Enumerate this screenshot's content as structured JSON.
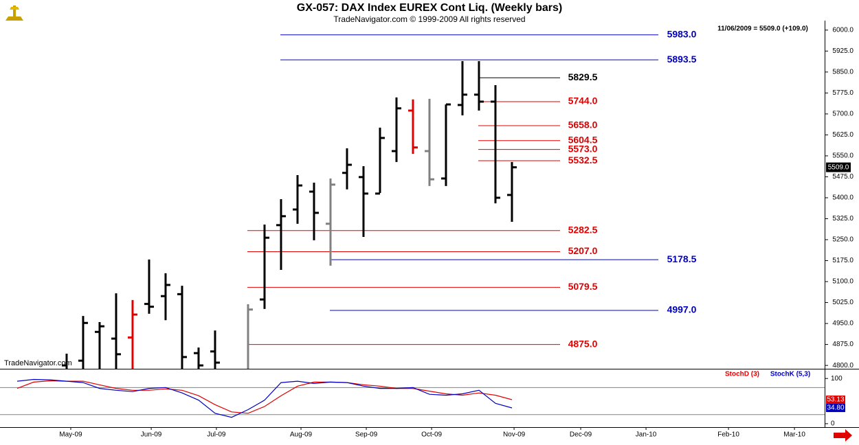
{
  "chart_data": [
    {
      "type": "ohlc",
      "title": "GX-057:  DAX Index EUREX Cont Liq.  (Weekly bars)",
      "subtitle": "TradeNavigator.com © 1999-2009 All rights reserved",
      "watermark": "TradeNavigator.com",
      "info": "11/06/2009 = 5509.0 (+109.0)",
      "last_price": {
        "value": 5509,
        "label": "5509.0"
      },
      "categories": [
        null,
        null,
        null,
        null,
        null,
        null,
        null,
        null,
        null,
        null,
        null,
        null,
        null,
        null,
        null,
        null,
        null,
        null,
        null,
        null,
        null,
        null,
        null,
        null,
        null,
        null,
        null,
        null,
        null,
        null,
        null
      ],
      "xlim": [
        -1.04,
        48.96
      ],
      "open": [
        null,
        null,
        null,
        4800,
        4817,
        4920,
        4896,
        4900,
        5020,
        5048,
        5055,
        4844,
        4850,
        4770,
        4700,
        5036,
        5302,
        5358,
        5422,
        5307,
        5489,
        5474,
        5415,
        5567,
        5712,
        5567,
        5469,
        5732,
        5769,
        5744,
        5410
      ],
      "high": [
        null,
        null,
        null,
        4842,
        4977,
        4955,
        5058,
        5034,
        5179,
        5130,
        5085,
        4864,
        4925,
        4780,
        5019,
        5304,
        5395,
        5481,
        5454,
        5469,
        5577,
        5513,
        5651,
        5759,
        5752,
        5754,
        5734,
        5889,
        5889,
        5803,
        5528
      ],
      "low": [
        null,
        null,
        null,
        4700,
        4750,
        4760,
        4780,
        4750,
        4985,
        4962,
        4780,
        4760,
        4700,
        4600,
        4690,
        5002,
        5142,
        5307,
        5248,
        5157,
        5430,
        5260,
        5417,
        5528,
        5557,
        5442,
        5442,
        5695,
        5712,
        5380,
        5314
      ],
      "close": [
        null,
        null,
        null,
        4780,
        4952,
        4940,
        4840,
        4982,
        5010,
        5088,
        4830,
        4800,
        4810,
        4700,
        5000,
        5257,
        5334,
        5444,
        5346,
        5447,
        5518,
        5415,
        5614,
        5720,
        5580,
        5466,
        5734,
        5769,
        5744,
        5400,
        5509
      ],
      "colors": [
        null,
        null,
        null,
        "#000000",
        "#000000",
        "#000000",
        "#000000",
        "#e00000",
        "#000000",
        "#000000",
        "#000000",
        "#000000",
        "#000000",
        "#000000",
        "#808080",
        "#000000",
        "#000000",
        "#000000",
        "#000000",
        "#808080",
        "#000000",
        "#000000",
        "#000000",
        "#000000",
        "#e00000",
        "#808080",
        "#000000",
        "#000000",
        "#000000",
        "#000000",
        "#000000"
      ],
      "ylim": [
        4788,
        6034
      ],
      "yticks": [
        {
          "value": 6000,
          "label": "6000.0"
        },
        {
          "value": 5925,
          "label": "5925.0"
        },
        {
          "value": 5850,
          "label": "5850.0"
        },
        {
          "value": 5775,
          "label": "5775.0"
        },
        {
          "value": 5700,
          "label": "5700.0"
        },
        {
          "value": 5625,
          "label": "5625.0"
        },
        {
          "value": 5550,
          "label": "5550.0"
        },
        {
          "value": 5475,
          "label": "5475.0"
        },
        {
          "value": 5400,
          "label": "5400.0"
        },
        {
          "value": 5325,
          "label": "5325.0"
        },
        {
          "value": 5250,
          "label": "5250.0"
        },
        {
          "value": 5175,
          "label": "5175.0"
        },
        {
          "value": 5100,
          "label": "5100.0"
        },
        {
          "value": 5025,
          "label": "5025.0"
        },
        {
          "value": 4950,
          "label": "4950.0"
        },
        {
          "value": 4875,
          "label": "4875.0"
        },
        {
          "value": 4800,
          "label": "4800.0"
        }
      ],
      "levels": [
        {
          "value": 5983,
          "label": "5983.0",
          "color": "#0000c0",
          "from": 16
        },
        {
          "value": 5893.5,
          "label": "5893.5",
          "color": "#0000c0",
          "from": 16
        },
        {
          "value": 5829.5,
          "label": "5829.5",
          "color": "#000000",
          "from": 28
        },
        {
          "value": 5744,
          "label": "5744.0",
          "color": "#e00000",
          "from": 28
        },
        {
          "value": 5658,
          "label": "5658.0",
          "color": "#e00000",
          "from": 28
        },
        {
          "value": 5604.5,
          "label": "5604.5",
          "color": "#e00000",
          "from": 28
        },
        {
          "value": 5573,
          "label": "5573.0",
          "color": "#e00000",
          "from": 28
        },
        {
          "value": 5532.5,
          "label": "5532.5",
          "color": "#e00000",
          "from": 28
        },
        {
          "value": 5282.5,
          "label": "5282.5",
          "color": "#e00000",
          "from": 14
        },
        {
          "value": 5207,
          "label": "5207.0",
          "color": "#e00000",
          "from": 14
        },
        {
          "value": 5178.5,
          "label": "5178.5",
          "color": "#0000c0",
          "from": 19
        },
        {
          "value": 5079.5,
          "label": "5079.5",
          "color": "#e00000",
          "from": 14
        },
        {
          "value": 4997,
          "label": "4997.0",
          "color": "#0000c0",
          "from": 19
        },
        {
          "value": 4875,
          "label": "4875.0",
          "color": "#e00000",
          "from": 14
        }
      ]
    },
    {
      "type": "line",
      "categories": [
        null,
        null,
        null,
        null,
        null,
        null,
        null,
        null,
        null,
        null,
        null,
        null,
        null,
        null,
        null,
        null,
        null,
        null,
        null,
        null,
        null,
        null,
        null,
        null,
        null,
        null,
        null,
        null,
        null,
        null,
        null
      ],
      "xlim": [
        -1.04,
        48.96
      ],
      "xticks": [
        {
          "value": 3.25,
          "label": "May-09"
        },
        {
          "value": 8.13,
          "label": "Jun-09"
        },
        {
          "value": 12.08,
          "label": "Jul-09"
        },
        {
          "value": 17.21,
          "label": "Aug-09"
        },
        {
          "value": 21.17,
          "label": "Sep-09"
        },
        {
          "value": 25.13,
          "label": "Oct-09"
        },
        {
          "value": 30.13,
          "label": "Nov-09"
        },
        {
          "value": 34.17,
          "label": "Dec-09"
        },
        {
          "value": 38.13,
          "label": "Jan-10"
        },
        {
          "value": 43.13,
          "label": "Feb-10"
        },
        {
          "value": 47.13,
          "label": "Mar-10"
        }
      ],
      "ylim": [
        -7.7,
        118.5
      ],
      "yticks": [
        0,
        100
      ],
      "levels": [
        20,
        80
      ],
      "series": [
        {
          "name": "StochD (3)",
          "color": "#e00000",
          "values": [
            78,
            92,
            95,
            94,
            94,
            86,
            78,
            74,
            74,
            77,
            74,
            62,
            42,
            26,
            23,
            38,
            62,
            83,
            92,
            92,
            91,
            86,
            83,
            78,
            78,
            72,
            66,
            63,
            68,
            63,
            53.13
          ]
        },
        {
          "name": "StochK (5,3)",
          "color": "#0000c0",
          "values": [
            94,
            98,
            97,
            94,
            91,
            78,
            74,
            71,
            78,
            80,
            68,
            52,
            23,
            14,
            31,
            52,
            91,
            94,
            89,
            92,
            91,
            83,
            78,
            78,
            80,
            65,
            63,
            66,
            74,
            45,
            34.8
          ],
          "value_labels": [
            null,
            null,
            null,
            null,
            null,
            null,
            null,
            null,
            null,
            null,
            null,
            null,
            null,
            null,
            null,
            null,
            null,
            null,
            null,
            null,
            null,
            null,
            null,
            null,
            null,
            null,
            null,
            null,
            null,
            null,
            "34.80"
          ]
        }
      ]
    }
  ]
}
